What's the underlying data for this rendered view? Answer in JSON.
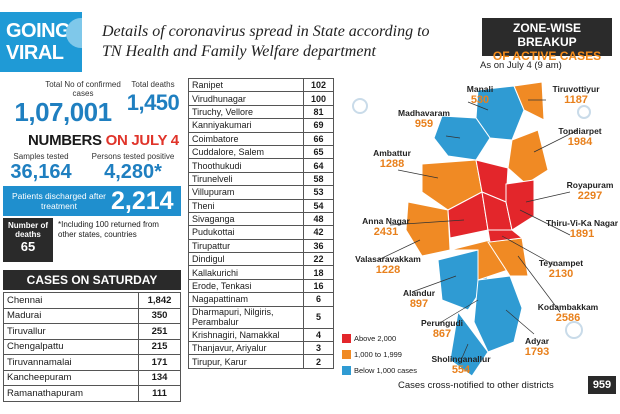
{
  "header": {
    "tag_line1": "GOING",
    "tag_line2": "VIRAL",
    "title": "Details of coronavirus spread in State according to TN Health and Family Welfare department"
  },
  "totals": {
    "confirmed_label": "Total No of confirmed cases",
    "confirmed_value": "1,07,001",
    "deaths_label": "Total deaths",
    "deaths_value": "1,450"
  },
  "numbers": {
    "title_prefix": "NUMBERS",
    "title_highlight": "ON JULY 4",
    "samples_label": "Samples tested",
    "samples_value": "36,164",
    "positive_label": "Persons tested positive",
    "positive_value": "4,280*",
    "discharged_label": "Patients discharged after treatment",
    "discharged_value": "2,214",
    "deaths_label": "Number of deaths",
    "deaths_value": "65",
    "note": "*Including 100 returned from other states, countries"
  },
  "saturday": {
    "title": "CASES ON SATURDAY",
    "rows": [
      {
        "name": "Chennai",
        "value": "1,842"
      },
      {
        "name": "Madurai",
        "value": "350"
      },
      {
        "name": "Tiruvallur",
        "value": "251"
      },
      {
        "name": "Chengalpattu",
        "value": "215"
      },
      {
        "name": "Tiruvannamalai",
        "value": "171"
      },
      {
        "name": "Kancheepuram",
        "value": "134"
      },
      {
        "name": "Ramanathapuram",
        "value": "111"
      }
    ]
  },
  "districts": {
    "rows": [
      {
        "name": "Ranipet",
        "value": "102"
      },
      {
        "name": "Virudhunagar",
        "value": "100"
      },
      {
        "name": "Tiruchy, Vellore",
        "value": "81"
      },
      {
        "name": "Kanniyakumari",
        "value": "69"
      },
      {
        "name": "Coimbatore",
        "value": "66"
      },
      {
        "name": "Cuddalore, Salem",
        "value": "65"
      },
      {
        "name": "Thoothukudi",
        "value": "64"
      },
      {
        "name": "Tirunelveli",
        "value": "58"
      },
      {
        "name": "Villupuram",
        "value": "53"
      },
      {
        "name": "Theni",
        "value": "54"
      },
      {
        "name": "Sivaganga",
        "value": "48"
      },
      {
        "name": "Pudukottai",
        "value": "42"
      },
      {
        "name": "Tirupattur",
        "value": "36"
      },
      {
        "name": "Dindigul",
        "value": "22"
      },
      {
        "name": "Kallakurichi",
        "value": "18"
      },
      {
        "name": "Erode, Tenkasi",
        "value": "16"
      },
      {
        "name": "Nagapattinam",
        "value": "6"
      },
      {
        "name": "Dharmapuri, Nilgiris, Perambalur",
        "value": "5"
      },
      {
        "name": "Krishnagiri, Namakkal",
        "value": "4"
      },
      {
        "name": "Thanjavur, Ariyalur",
        "value": "3"
      },
      {
        "name": "Tirupur, Karur",
        "value": "2"
      }
    ]
  },
  "zones": {
    "title_line1": "ZONE-WISE BREAKUP",
    "title_line2": "OF ACTIVE CASES",
    "as_of": "As on July 4 (9 am)",
    "items": [
      {
        "name": "Manali",
        "value": "530"
      },
      {
        "name": "Tiruvottiyur",
        "value": "1187"
      },
      {
        "name": "Madhavaram",
        "value": "959"
      },
      {
        "name": "Tondiarpet",
        "value": "1984"
      },
      {
        "name": "Ambattur",
        "value": "1288"
      },
      {
        "name": "Royapuram",
        "value": "2297"
      },
      {
        "name": "Anna Nagar",
        "value": "2431"
      },
      {
        "name": "Thiru-Vi-Ka Nagar",
        "value": "1891"
      },
      {
        "name": "Valasaravakkam",
        "value": "1228"
      },
      {
        "name": "Teynampet",
        "value": "2130"
      },
      {
        "name": "Alandur",
        "value": "897"
      },
      {
        "name": "Kodambakkam",
        "value": "2586"
      },
      {
        "name": "Perungudi",
        "value": "867"
      },
      {
        "name": "Adyar",
        "value": "1793"
      },
      {
        "name": "Sholinganallur",
        "value": "554"
      }
    ],
    "legend": [
      {
        "label": "Above 2,000",
        "color": "#e3262b"
      },
      {
        "label": "1,000 to 1,999",
        "color": "#f08a24"
      },
      {
        "label": "Below 1,000 cases",
        "color": "#2f9bd3"
      }
    ],
    "footer_label": "Cases cross-notified to other districts",
    "footer_value": "959"
  }
}
